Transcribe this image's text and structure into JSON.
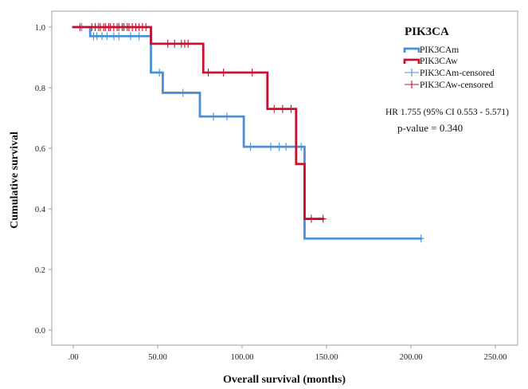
{
  "chart_data": {
    "type": "line",
    "title": "",
    "xlabel": "Overall survival (months)",
    "ylabel": "Cumulative survival",
    "xlim": [
      0,
      250
    ],
    "ylim": [
      0,
      1.0
    ],
    "x_ticks": [
      ".00",
      "50.00",
      "100.00",
      "150.00",
      "200.00",
      "250.00"
    ],
    "y_ticks": [
      "0.0",
      "0.2",
      "0.4",
      "0.6",
      "0.8",
      "1.0"
    ],
    "legend": {
      "title": "PIK3CA",
      "placement": "top-right",
      "entries": [
        "PIK3CAm",
        "PIK3CAw",
        "PIK3CAm-censored",
        "PIK3CAw-censored"
      ]
    },
    "annotations": [
      "HR 1.755 (95% CI 0.553 - 5.571)",
      "p-value = 0.340"
    ],
    "colors": {
      "PIK3CAm": "#4a90d9",
      "PIK3CAw": "#c8102e"
    },
    "series": [
      {
        "name": "PIK3CAm",
        "steps": [
          [
            0,
            1.0
          ],
          [
            10,
            0.97
          ],
          [
            46,
            0.85
          ],
          [
            53,
            0.783
          ],
          [
            75,
            0.705
          ],
          [
            101,
            0.605
          ],
          [
            137,
            0.302
          ],
          [
            206,
            0.302
          ]
        ],
        "censored": [
          [
            5,
            1.0
          ],
          [
            12,
            0.97
          ],
          [
            14,
            0.97
          ],
          [
            17,
            0.97
          ],
          [
            20,
            0.97
          ],
          [
            24,
            0.97
          ],
          [
            27,
            0.97
          ],
          [
            34,
            0.97
          ],
          [
            39,
            0.97
          ],
          [
            51,
            0.85
          ],
          [
            65,
            0.783
          ],
          [
            83,
            0.705
          ],
          [
            91,
            0.705
          ],
          [
            105,
            0.605
          ],
          [
            117,
            0.605
          ],
          [
            122,
            0.605
          ],
          [
            126,
            0.605
          ],
          [
            135,
            0.605
          ],
          [
            206,
            0.302
          ]
        ]
      },
      {
        "name": "PIK3CAw",
        "steps": [
          [
            0,
            1.0
          ],
          [
            46,
            0.945
          ],
          [
            77,
            0.85
          ],
          [
            115,
            0.73
          ],
          [
            132,
            0.548
          ],
          [
            137,
            0.367
          ],
          [
            148,
            0.367
          ]
        ],
        "censored": [
          [
            4,
            1.0
          ],
          [
            11,
            1.0
          ],
          [
            13,
            1.0
          ],
          [
            15,
            1.0
          ],
          [
            16,
            1.0
          ],
          [
            18,
            1.0
          ],
          [
            19,
            1.0
          ],
          [
            21,
            1.0
          ],
          [
            22,
            1.0
          ],
          [
            24,
            1.0
          ],
          [
            26,
            1.0
          ],
          [
            27,
            1.0
          ],
          [
            29,
            1.0
          ],
          [
            30,
            1.0
          ],
          [
            32,
            1.0
          ],
          [
            33,
            1.0
          ],
          [
            35,
            1.0
          ],
          [
            37,
            1.0
          ],
          [
            39,
            1.0
          ],
          [
            41,
            1.0
          ],
          [
            43,
            1.0
          ],
          [
            56,
            0.945
          ],
          [
            60,
            0.945
          ],
          [
            64,
            0.945
          ],
          [
            66,
            0.945
          ],
          [
            68,
            0.945
          ],
          [
            80,
            0.85
          ],
          [
            89,
            0.85
          ],
          [
            106,
            0.85
          ],
          [
            119,
            0.73
          ],
          [
            124,
            0.73
          ],
          [
            129,
            0.73
          ],
          [
            141,
            0.367
          ],
          [
            148,
            0.367
          ]
        ]
      }
    ]
  }
}
